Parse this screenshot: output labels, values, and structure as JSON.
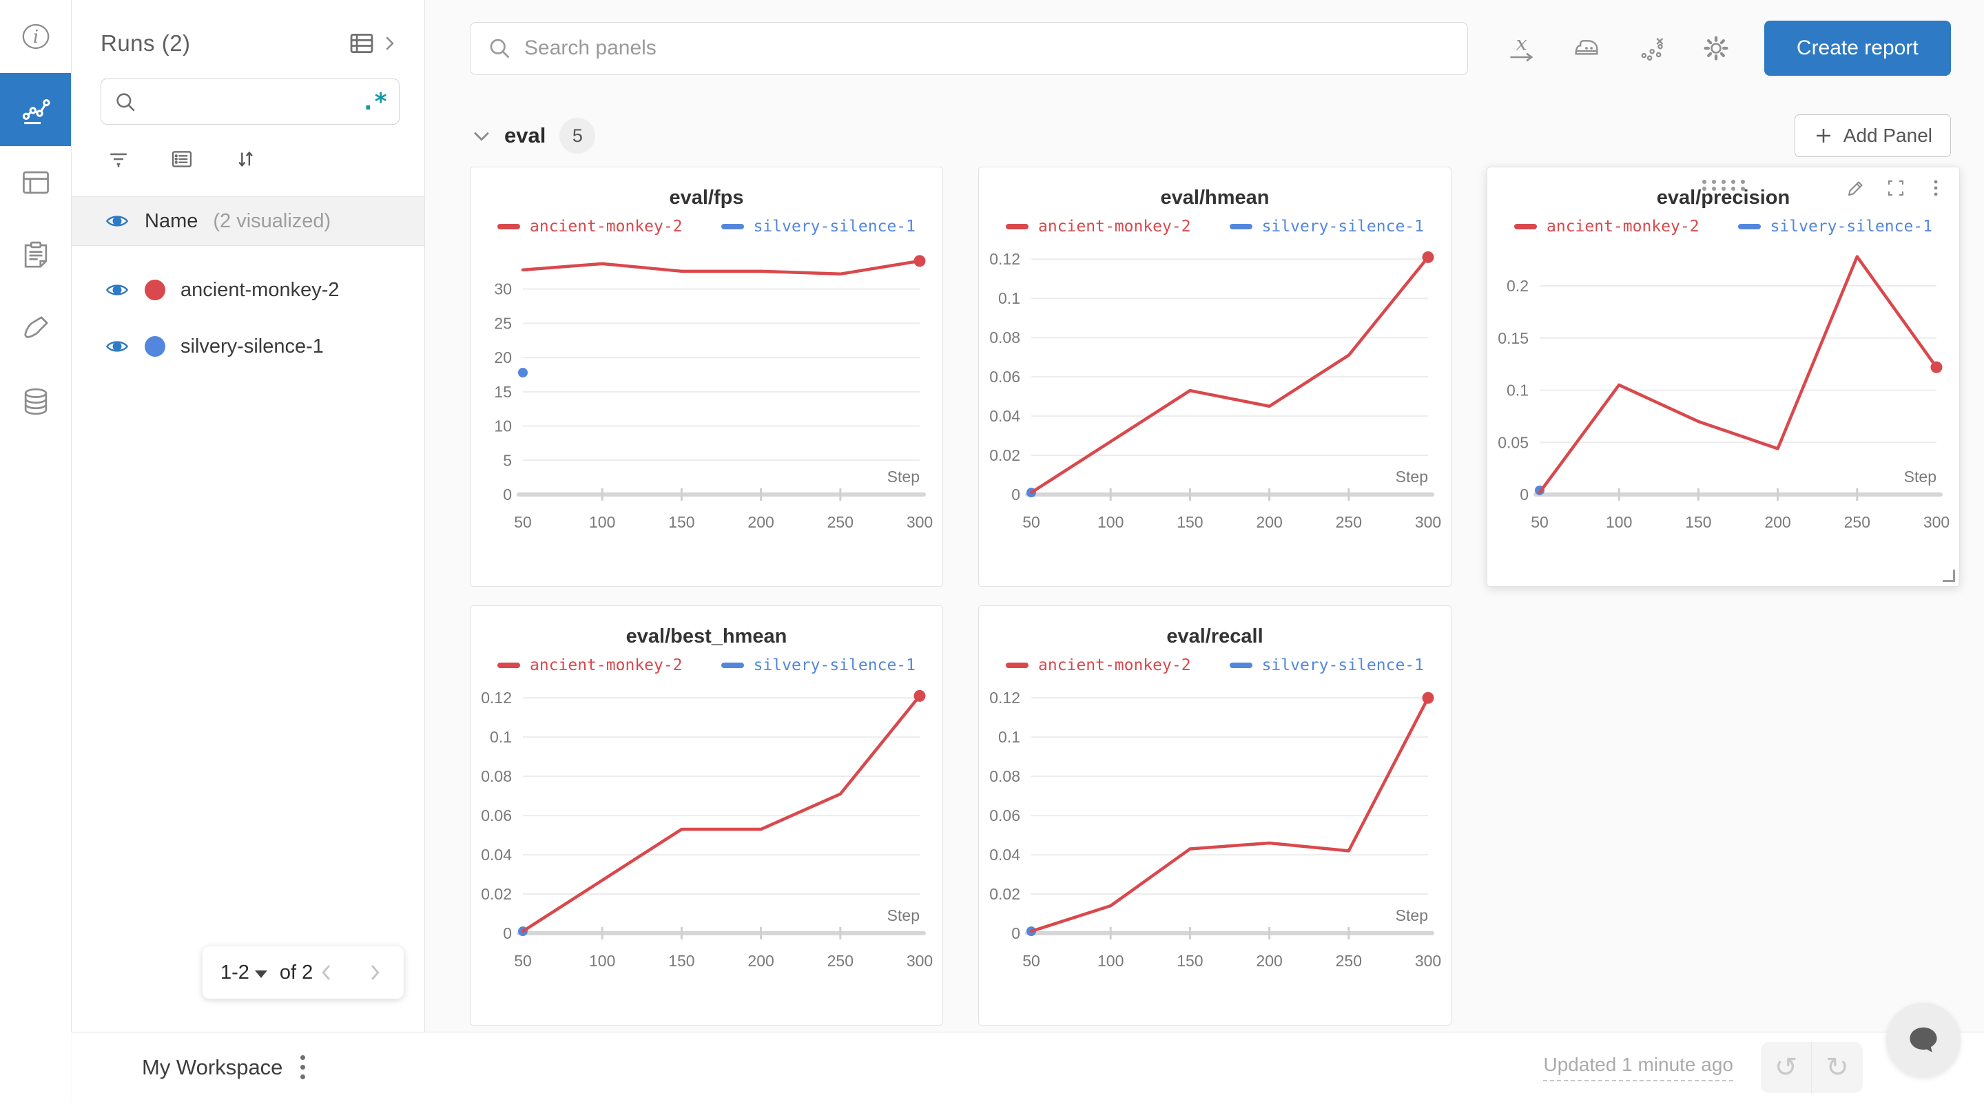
{
  "colors": {
    "accent_blue": "#2e7ac4",
    "run_red": "#D9484C",
    "run_blue": "#5387DD",
    "teal_regex": "#1399a4",
    "bg": "#fafafa"
  },
  "rail": {
    "items": [
      {
        "icon": "info-icon",
        "active": false
      },
      {
        "icon": "line-chart-icon",
        "active": true
      },
      {
        "icon": "table-icon",
        "active": false
      },
      {
        "icon": "clipboard-icon",
        "active": false
      },
      {
        "icon": "brush-icon",
        "active": false
      },
      {
        "icon": "database-icon",
        "active": false
      }
    ]
  },
  "runs_panel": {
    "title": "Runs (2)",
    "search_value": "",
    "regex_icon": ".*",
    "visible_label": "Name",
    "visible_sub": "(2 visualized)",
    "pagination": {
      "range": "1-2",
      "of": "of 2"
    }
  },
  "runs": [
    {
      "name": "ancient-monkey-2",
      "color": "#D9484C"
    },
    {
      "name": "silvery-silence-1",
      "color": "#5387DD"
    }
  ],
  "topbar": {
    "search_placeholder": "Search panels",
    "icons": [
      "x-axis-icon",
      "smoothing-iron-icon",
      "outliers-icon",
      "settings-gear-icon"
    ],
    "create_report": "Create report"
  },
  "section": {
    "label": "eval",
    "count": "5",
    "add_panel": "Add Panel"
  },
  "footer": {
    "workspace": "My Workspace",
    "updated": "Updated 1 minute ago",
    "undo_glyph": "↺",
    "redo_glyph": "↻"
  },
  "chart_data": [
    {
      "type": "line",
      "title": "eval/fps",
      "xlabel": "Step",
      "x": [
        50,
        100,
        150,
        200,
        250,
        300
      ],
      "yticks": [
        0,
        5,
        10,
        15,
        20,
        25,
        30
      ],
      "ylim": [
        0,
        35.8
      ],
      "legend_position": "top",
      "grid": true,
      "hovered": false,
      "series": [
        {
          "name": "ancient-monkey-2",
          "color": "#D9484C",
          "values": [
            32.8,
            33.7,
            32.6,
            32.6,
            32.2,
            34.1
          ],
          "end_marker": true
        },
        {
          "name": "silvery-silence-1",
          "color": "#5387DD",
          "values": [
            17.8
          ],
          "single_point": true
        }
      ]
    },
    {
      "type": "line",
      "title": "eval/hmean",
      "xlabel": "Step",
      "x": [
        50,
        100,
        150,
        200,
        250,
        300
      ],
      "yticks": [
        0,
        0.02,
        0.04,
        0.06,
        0.08,
        0.1,
        0.12
      ],
      "ylim": [
        0,
        0.125
      ],
      "legend_position": "top",
      "grid": true,
      "hovered": false,
      "series": [
        {
          "name": "ancient-monkey-2",
          "color": "#D9484C",
          "values": [
            0.001,
            0.027,
            0.053,
            0.045,
            0.071,
            0.121
          ],
          "end_marker": true
        },
        {
          "name": "silvery-silence-1",
          "color": "#5387DD",
          "values": [
            0.001
          ],
          "single_point": true
        }
      ]
    },
    {
      "type": "line",
      "title": "eval/precision",
      "xlabel": "Step",
      "x": [
        50,
        100,
        150,
        200,
        250,
        300
      ],
      "yticks": [
        0,
        0.05,
        0.1,
        0.15,
        0.2
      ],
      "ylim": [
        0,
        0.235
      ],
      "legend_position": "top",
      "grid": true,
      "hovered": true,
      "series": [
        {
          "name": "ancient-monkey-2",
          "color": "#D9484C",
          "values": [
            0.002,
            0.105,
            0.07,
            0.044,
            0.228,
            0.122
          ],
          "end_marker": true
        },
        {
          "name": "silvery-silence-1",
          "color": "#5387DD",
          "values": [
            0.004
          ],
          "single_point": true
        }
      ]
    },
    {
      "type": "line",
      "title": "eval/best_hmean",
      "xlabel": "Step",
      "x": [
        50,
        100,
        150,
        200,
        250,
        300
      ],
      "yticks": [
        0,
        0.02,
        0.04,
        0.06,
        0.08,
        0.1,
        0.12
      ],
      "ylim": [
        0,
        0.125
      ],
      "legend_position": "top",
      "grid": true,
      "hovered": false,
      "series": [
        {
          "name": "ancient-monkey-2",
          "color": "#D9484C",
          "values": [
            0.001,
            0.027,
            0.053,
            0.053,
            0.071,
            0.121
          ],
          "end_marker": true
        },
        {
          "name": "silvery-silence-1",
          "color": "#5387DD",
          "values": [
            0.001
          ],
          "single_point": true
        }
      ]
    },
    {
      "type": "line",
      "title": "eval/recall",
      "xlabel": "Step",
      "x": [
        50,
        100,
        150,
        200,
        250,
        300
      ],
      "yticks": [
        0,
        0.02,
        0.04,
        0.06,
        0.08,
        0.1,
        0.12
      ],
      "ylim": [
        0,
        0.125
      ],
      "legend_position": "top",
      "grid": true,
      "hovered": false,
      "series": [
        {
          "name": "ancient-monkey-2",
          "color": "#D9484C",
          "values": [
            0.001,
            0.014,
            0.043,
            0.046,
            0.042,
            0.12
          ],
          "end_marker": true
        },
        {
          "name": "silvery-silence-1",
          "color": "#5387DD",
          "values": [
            0.001
          ],
          "single_point": true
        }
      ]
    }
  ]
}
